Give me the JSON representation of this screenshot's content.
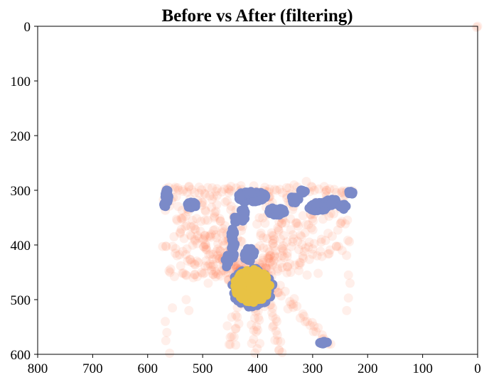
{
  "chart_data": {
    "type": "scatter",
    "title": "Before vs After (filtering)",
    "xlabel": "",
    "ylabel": "",
    "xlim": [
      800,
      0
    ],
    "ylim": [
      600,
      0
    ],
    "x_ticks": [
      800,
      700,
      600,
      500,
      400,
      300,
      200,
      100,
      0
    ],
    "y_ticks": [
      0,
      100,
      200,
      300,
      400,
      500,
      600
    ],
    "grid": false,
    "legend": "none",
    "series": [
      {
        "color": "#ff7f50",
        "opacity": 0.12,
        "role": "before",
        "strokes": [
          {
            "from": [
              415,
              470
            ],
            "to": [
              565,
              305
            ],
            "count": 45,
            "jitter": 6
          },
          {
            "from": [
              415,
              470
            ],
            "to": [
              555,
              340
            ],
            "count": 35,
            "jitter": 6
          },
          {
            "from": [
              415,
              470
            ],
            "to": [
              520,
              300
            ],
            "count": 35,
            "jitter": 6
          },
          {
            "from": [
              415,
              470
            ],
            "to": [
              490,
              305
            ],
            "count": 30,
            "jitter": 5
          },
          {
            "from": [
              415,
              470
            ],
            "to": [
              455,
              300
            ],
            "count": 25,
            "jitter": 5
          },
          {
            "from": [
              415,
              470
            ],
            "to": [
              375,
              300
            ],
            "count": 25,
            "jitter": 5
          },
          {
            "from": [
              415,
              470
            ],
            "to": [
              330,
              305
            ],
            "count": 30,
            "jitter": 5
          },
          {
            "from": [
              415,
              470
            ],
            "to": [
              280,
              310
            ],
            "count": 35,
            "jitter": 6
          },
          {
            "from": [
              415,
              470
            ],
            "to": [
              240,
              310
            ],
            "count": 40,
            "jitter": 6
          },
          {
            "from": [
              415,
              470
            ],
            "to": [
              235,
              355
            ],
            "count": 35,
            "jitter": 6
          },
          {
            "from": [
              415,
              470
            ],
            "to": [
              230,
              395
            ],
            "count": 35,
            "jitter": 6
          },
          {
            "from": [
              415,
              470
            ],
            "to": [
              570,
              400
            ],
            "count": 40,
            "jitter": 6
          },
          {
            "from": [
              415,
              470
            ],
            "to": [
              565,
              440
            ],
            "count": 30,
            "jitter": 6
          },
          {
            "from": [
              415,
              470
            ],
            "to": [
              550,
              370
            ],
            "count": 30,
            "jitter": 6
          },
          {
            "from": [
              570,
              300
            ],
            "to": [
              230,
              300
            ],
            "count": 70,
            "jitter": 4
          },
          {
            "from": [
              400,
              470
            ],
            "to": [
              405,
              600
            ],
            "count": 25,
            "jitter": 5
          },
          {
            "from": [
              385,
              470
            ],
            "to": [
              355,
              600
            ],
            "count": 25,
            "jitter": 5
          },
          {
            "from": [
              375,
              470
            ],
            "to": [
              270,
              580
            ],
            "count": 30,
            "jitter": 6
          },
          {
            "from": [
              420,
              470
            ],
            "to": [
              450,
              580
            ],
            "count": 15,
            "jitter": 5
          },
          {
            "from": [
              345,
              340
            ],
            "to": [
              405,
              470
            ],
            "count": 20,
            "jitter": 5
          }
        ],
        "points": [
          [
            0,
            0
          ],
          [
            2,
            2
          ],
          [
            568,
            540
          ],
          [
            565,
            560
          ],
          [
            567,
            575
          ],
          [
            560,
            598
          ],
          [
            555,
            515
          ],
          [
            530,
            500
          ],
          [
            525,
            520
          ],
          [
            515,
            435
          ],
          [
            490,
            470
          ],
          [
            475,
            452
          ],
          [
            510,
            458
          ],
          [
            283,
            572
          ],
          [
            285,
            578
          ],
          [
            232,
            470
          ],
          [
            235,
            497
          ],
          [
            238,
            520
          ],
          [
            235,
            455
          ],
          [
            350,
            485
          ],
          [
            340,
            450
          ],
          [
            325,
            447
          ],
          [
            310,
            455
          ],
          [
            290,
            452
          ],
          [
            447,
            532
          ],
          [
            455,
            548
          ],
          [
            447,
            567
          ],
          [
            440,
            583
          ],
          [
            452,
            582
          ]
        ]
      },
      {
        "color": "#7b8ac8",
        "opacity": 1,
        "role": "after",
        "blobs": [
          {
            "cx": 565,
            "cy": 310,
            "rx": 4,
            "ry": 12,
            "n": 30
          },
          {
            "cx": 568,
            "cy": 325,
            "rx": 3,
            "ry": 5,
            "n": 8
          },
          {
            "cx": 520,
            "cy": 327,
            "rx": 8,
            "ry": 6,
            "n": 25
          },
          {
            "cx": 440,
            "cy": 353,
            "rx": 4,
            "ry": 5,
            "n": 8
          },
          {
            "cx": 427,
            "cy": 345,
            "rx": 5,
            "ry": 12,
            "n": 25
          },
          {
            "cx": 412,
            "cy": 312,
            "rx": 28,
            "ry": 10,
            "n": 90
          },
          {
            "cx": 365,
            "cy": 338,
            "rx": 15,
            "ry": 8,
            "n": 40
          },
          {
            "cx": 333,
            "cy": 317,
            "rx": 8,
            "ry": 6,
            "n": 20
          },
          {
            "cx": 318,
            "cy": 302,
            "rx": 5,
            "ry": 3,
            "n": 10
          },
          {
            "cx": 290,
            "cy": 330,
            "rx": 18,
            "ry": 8,
            "n": 45
          },
          {
            "cx": 265,
            "cy": 322,
            "rx": 12,
            "ry": 6,
            "n": 25
          },
          {
            "cx": 230,
            "cy": 304,
            "rx": 5,
            "ry": 3,
            "n": 10
          },
          {
            "cx": 245,
            "cy": 330,
            "rx": 6,
            "ry": 5,
            "n": 12
          },
          {
            "cx": 445,
            "cy": 395,
            "rx": 4,
            "ry": 30,
            "n": 30
          },
          {
            "cx": 455,
            "cy": 430,
            "rx": 5,
            "ry": 12,
            "n": 15
          },
          {
            "cx": 415,
            "cy": 418,
            "rx": 10,
            "ry": 12,
            "n": 20
          },
          {
            "cx": 410,
            "cy": 478,
            "rx": 38,
            "ry": 36,
            "n": 180
          },
          {
            "cx": 280,
            "cy": 578,
            "rx": 8,
            "ry": 3,
            "n": 12
          }
        ]
      },
      {
        "color": "#e8c244",
        "opacity": 1,
        "role": "after-core",
        "blobs": [
          {
            "cx": 410,
            "cy": 475,
            "rx": 32,
            "ry": 30,
            "n": 260
          }
        ]
      }
    ]
  }
}
